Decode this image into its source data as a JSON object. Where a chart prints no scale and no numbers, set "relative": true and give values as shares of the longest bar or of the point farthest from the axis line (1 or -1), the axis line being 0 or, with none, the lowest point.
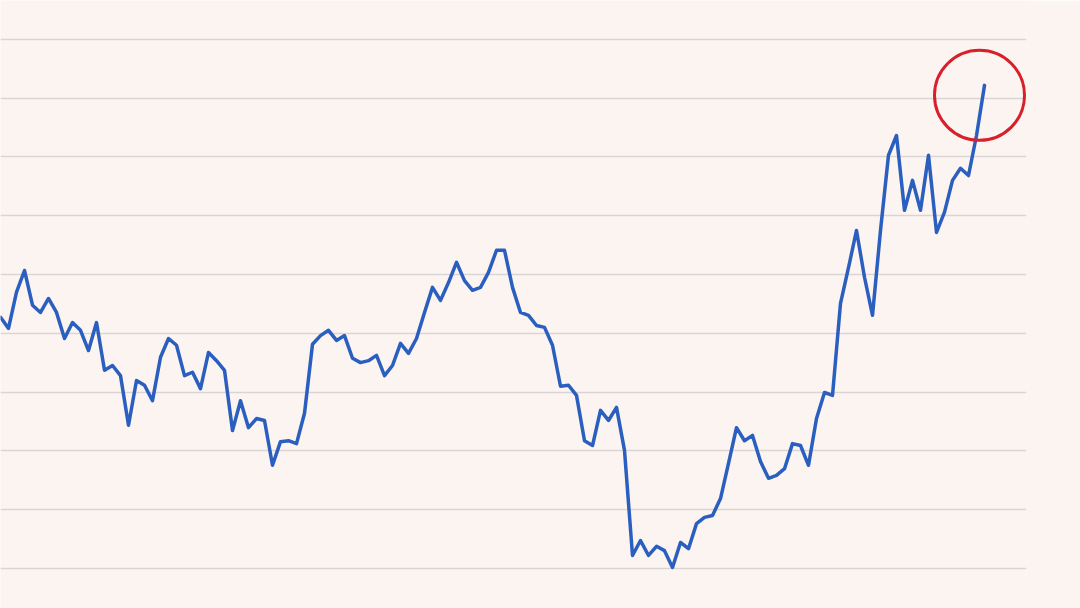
{
  "chart_data": {
    "type": "line",
    "relative": true,
    "grid": "y",
    "categories": [
      null,
      null,
      null,
      null,
      null,
      null,
      null,
      null,
      null,
      null,
      null,
      null,
      null,
      null,
      null,
      null,
      null,
      null,
      null,
      null,
      null,
      null,
      null,
      null,
      null,
      null,
      null,
      null,
      null,
      null,
      null,
      null,
      null,
      null,
      null,
      null,
      null,
      null,
      null,
      null,
      null,
      null,
      null,
      null,
      null,
      null,
      null,
      null,
      null,
      null,
      null,
      null,
      null,
      null,
      null,
      null,
      null,
      null,
      null,
      null,
      null,
      null,
      null,
      null,
      null,
      null,
      null,
      null,
      null,
      null,
      null,
      null,
      null,
      null,
      null,
      null,
      null,
      null,
      null,
      null,
      null,
      null,
      null,
      null,
      null,
      null,
      null,
      null,
      null,
      null,
      null,
      null,
      null,
      null,
      null,
      null,
      null,
      null,
      null,
      null,
      null,
      null,
      null,
      null,
      null,
      null,
      null,
      null,
      null,
      null,
      null,
      null,
      null,
      null,
      null,
      null,
      null,
      null,
      null,
      null,
      null,
      null,
      null,
      null
    ],
    "series": [
      {
        "color": "#2b5fbf",
        "values": [
          0.519,
          0.496,
          0.571,
          0.616,
          0.544,
          0.529,
          0.558,
          0.529,
          0.475,
          0.508,
          0.492,
          0.45,
          0.508,
          0.409,
          0.419,
          0.398,
          0.295,
          0.388,
          0.378,
          0.346,
          0.436,
          0.475,
          0.461,
          0.398,
          0.405,
          0.371,
          0.446,
          0.429,
          0.409,
          0.284,
          0.346,
          0.29,
          0.309,
          0.305,
          0.212,
          0.261,
          0.263,
          0.257,
          0.32,
          0.463,
          0.481,
          0.492,
          0.471,
          0.481,
          0.434,
          0.425,
          0.429,
          0.44,
          0.398,
          0.419,
          0.465,
          0.444,
          0.475,
          0.529,
          0.581,
          0.554,
          0.591,
          0.633,
          0.595,
          0.575,
          0.581,
          0.612,
          0.658,
          0.658,
          0.581,
          0.529,
          0.523,
          0.502,
          0.498,
          0.461,
          0.376,
          0.378,
          0.357,
          0.263,
          0.253,
          0.326,
          0.305,
          0.332,
          0.243,
          0.025,
          0.056,
          0.025,
          0.044,
          0.035,
          0,
          0.052,
          0.039,
          0.091,
          0.104,
          0.108,
          0.143,
          0.216,
          0.29,
          0.263,
          0.274,
          0.22,
          0.185,
          0.191,
          0.205,
          0.257,
          0.253,
          0.212,
          0.309,
          0.363,
          0.357,
          0.548,
          0.622,
          0.699,
          0.602,
          0.523,
          0.699,
          0.855,
          0.896,
          0.741,
          0.803,
          0.741,
          0.855,
          0.695,
          0.737,
          0.803,
          0.828,
          0.813,
          0.896,
          1
        ]
      }
    ]
  }
}
